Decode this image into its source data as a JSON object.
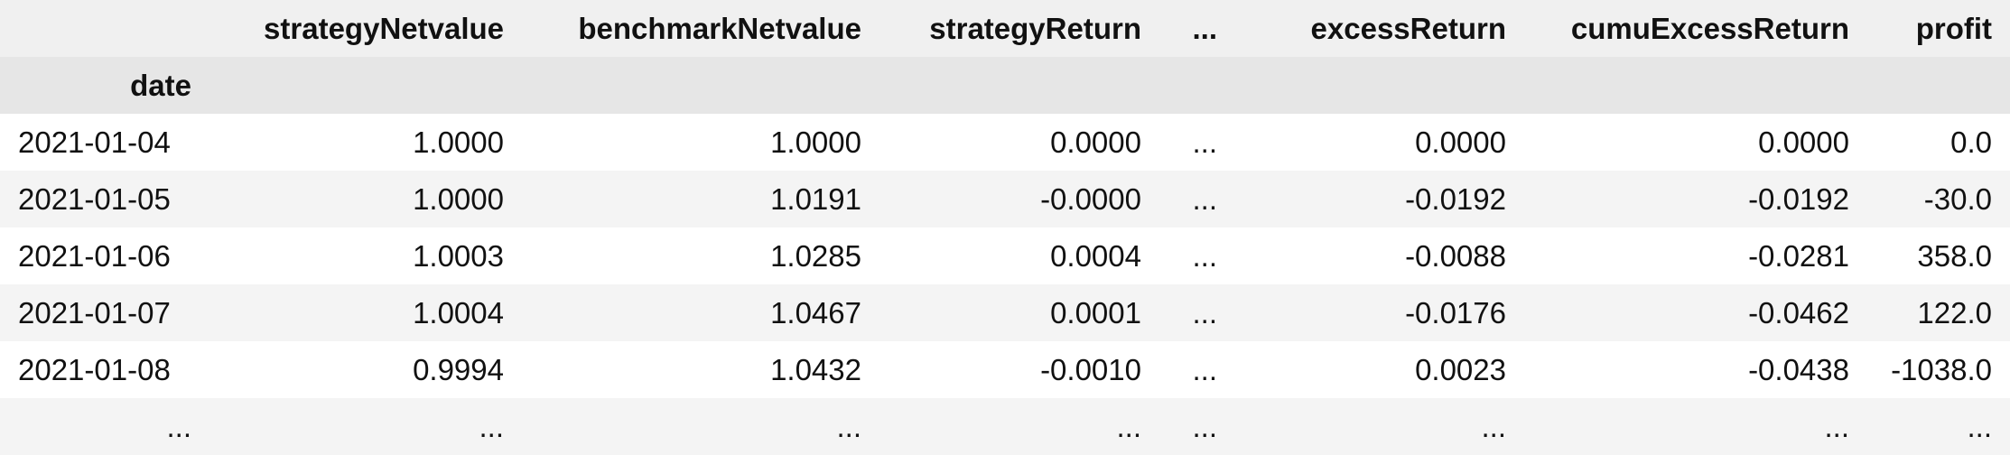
{
  "columns": [
    "strategyNetvalue",
    "benchmarkNetvalue",
    "strategyReturn",
    "...",
    "excessReturn",
    "cumuExcessReturn",
    "profit"
  ],
  "index_name": "date",
  "rows": [
    {
      "index": "2021-01-04",
      "values": [
        "1.0000",
        "1.0000",
        "0.0000",
        "...",
        "0.0000",
        "0.0000",
        "0.0"
      ]
    },
    {
      "index": "2021-01-05",
      "values": [
        "1.0000",
        "1.0191",
        "-0.0000",
        "...",
        "-0.0192",
        "-0.0192",
        "-30.0"
      ]
    },
    {
      "index": "2021-01-06",
      "values": [
        "1.0003",
        "1.0285",
        "0.0004",
        "...",
        "-0.0088",
        "-0.0281",
        "358.0"
      ]
    },
    {
      "index": "2021-01-07",
      "values": [
        "1.0004",
        "1.0467",
        "0.0001",
        "...",
        "-0.0176",
        "-0.0462",
        "122.0"
      ]
    },
    {
      "index": "2021-01-08",
      "values": [
        "0.9994",
        "1.0432",
        "-0.0010",
        "...",
        "0.0023",
        "-0.0438",
        "-1038.0"
      ]
    },
    {
      "index": "...",
      "values": [
        "...",
        "...",
        "...",
        "...",
        "...",
        "...",
        "..."
      ]
    }
  ]
}
